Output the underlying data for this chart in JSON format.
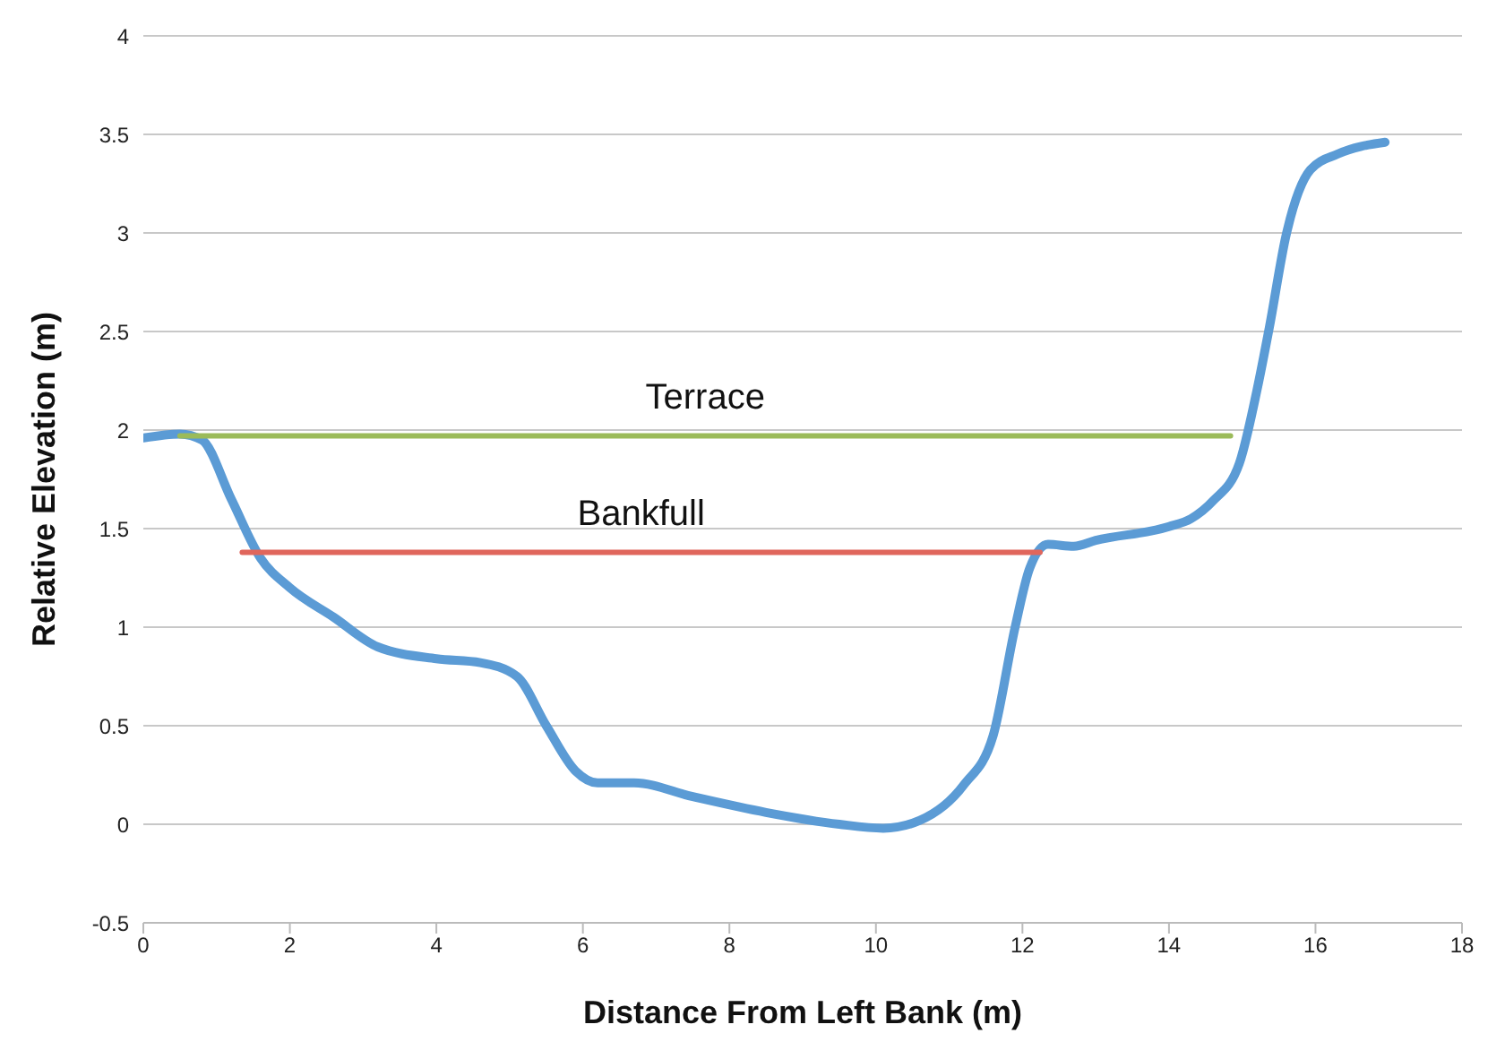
{
  "chart_data": {
    "type": "line",
    "xlabel": "Distance From Left Bank (m)",
    "ylabel": "Relative Elevation (m)",
    "xlim": [
      0,
      18
    ],
    "xticks": [
      0,
      2,
      4,
      6,
      8,
      10,
      12,
      14,
      16,
      18
    ],
    "ylim": [
      -0.5,
      4
    ],
    "yticks": [
      -0.5,
      0,
      0.5,
      1,
      1.5,
      2,
      2.5,
      3,
      3.5,
      4
    ],
    "grid": "y",
    "legend": false,
    "marker": "none",
    "line_style": "solid",
    "series": [
      {
        "color": "#5b9bd5",
        "x": [
          0,
          0.5,
          0.8,
          1.2,
          1.6,
          2,
          2.6,
          3.2,
          4,
          4.6,
          5.1,
          5.5,
          5.9,
          6.2,
          6.7,
          7.5,
          8.5,
          9.5,
          10.1,
          10.6,
          11.2,
          11.6,
          11.9,
          12.1,
          12.35,
          12.7,
          13,
          14,
          14.3,
          14.6,
          14.96,
          15.2,
          15.37,
          15.6,
          15.93,
          16.3,
          16.95
        ],
        "values": [
          1.96,
          1.98,
          1.95,
          1.65,
          1.35,
          1.2,
          1.05,
          0.9,
          0.84,
          0.82,
          0.75,
          0.5,
          0.27,
          0.21,
          0.21,
          0.14,
          0.06,
          0,
          -0.02,
          0.02,
          0.2,
          0.45,
          1,
          1.3,
          1.42,
          1.41,
          1.44,
          1.51,
          1.55,
          1.64,
          1.83,
          2.2,
          2.52,
          2.99,
          3.32,
          3.4,
          3.46
        ]
      },
      {
        "name": "Terrace",
        "color": "#9bbb59",
        "x": [
          0.5,
          14.84
        ],
        "values": [
          1.97,
          1.97
        ]
      },
      {
        "name": "Bankfull",
        "color": "#e0665c",
        "x": [
          1.35,
          12.24
        ],
        "values": [
          1.38,
          1.38
        ]
      }
    ]
  }
}
